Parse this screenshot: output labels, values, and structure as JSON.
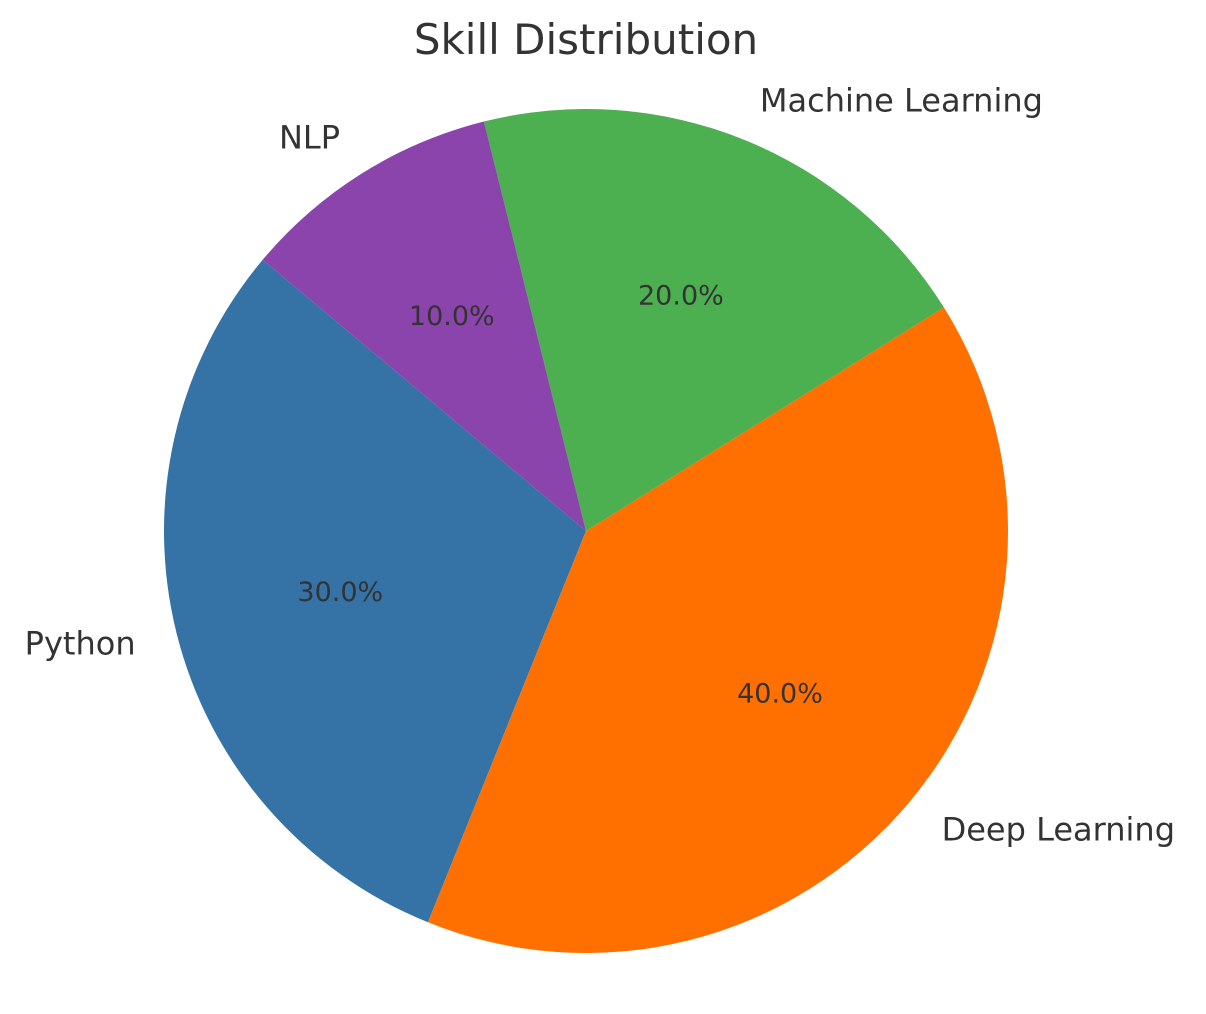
{
  "chart_data": {
    "type": "pie",
    "title": "Skill Distribution",
    "start_angle_deg": 140,
    "direction": "counterclockwise",
    "slices": [
      {
        "label": "Python",
        "value": 30,
        "pct_text": "30.0%",
        "color": "#3572a5"
      },
      {
        "label": "Deep Learning",
        "value": 40,
        "pct_text": "40.0%",
        "color": "#ff7000"
      },
      {
        "label": "Machine Learning",
        "value": 20,
        "pct_text": "20.0%",
        "color": "#4caf50"
      },
      {
        "label": "NLP",
        "value": 10,
        "pct_text": "10.0%",
        "color": "#8a44ab"
      }
    ],
    "legend": "none"
  }
}
